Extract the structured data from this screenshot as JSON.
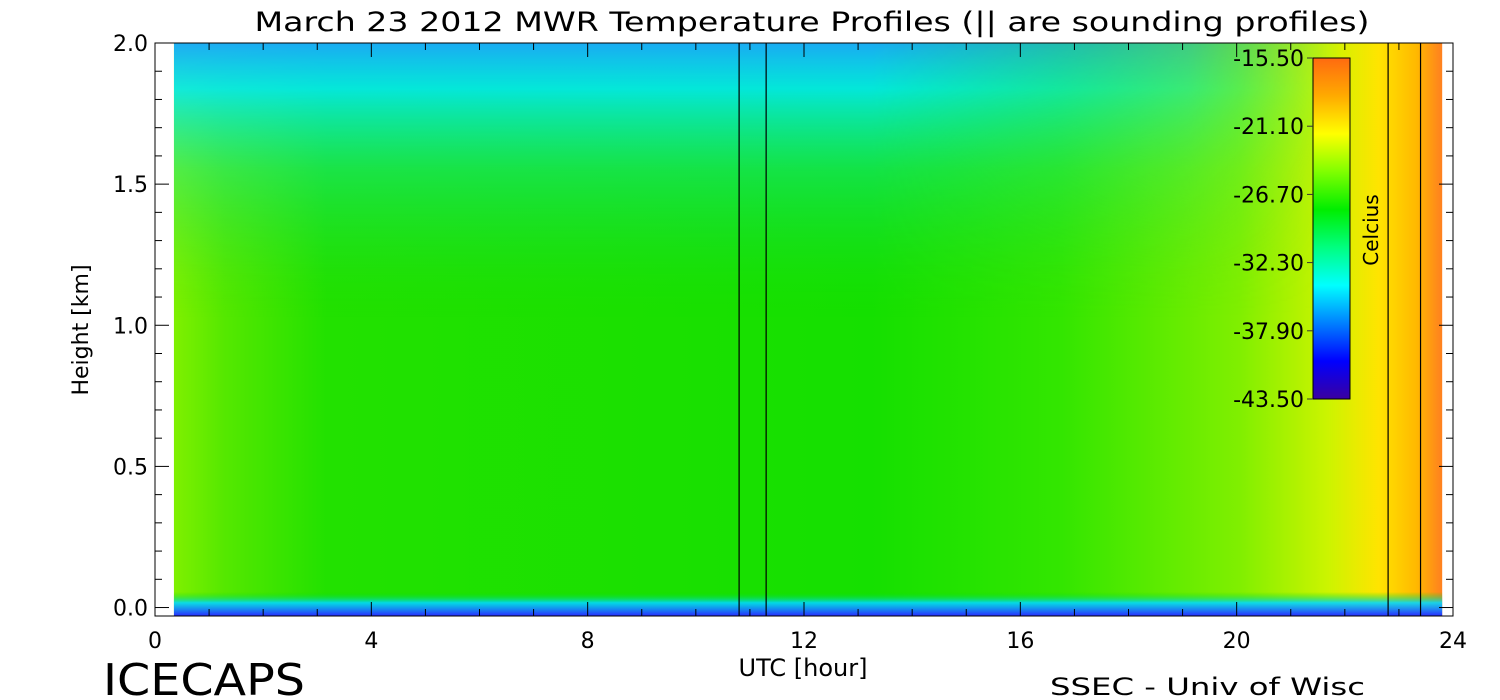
{
  "footer": {
    "left_label": "ICECAPS",
    "right_label": "SSEC - Univ of Wisc"
  },
  "chart_data": {
    "type": "heatmap",
    "title": "March 23 2012 MWR Temperature Profiles (|| are sounding profiles)",
    "xlabel": "UTC [hour]",
    "ylabel": "Height [km]",
    "xlim": [
      0,
      24
    ],
    "ylim": [
      -0.03,
      2.0
    ],
    "x_ticks": [
      "0",
      "4",
      "8",
      "12",
      "16",
      "20",
      "24"
    ],
    "y_ticks": [
      "0.0",
      "0.5",
      "1.0",
      "1.5",
      "2.0"
    ],
    "data_x_range": [
      0.35,
      23.8
    ],
    "sounding_profiles_utc": [
      10.8,
      11.3,
      22.8,
      23.4
    ],
    "colorbar": {
      "label": "Celcius",
      "tick_labels": [
        "-15.50",
        "-21.10",
        "-26.70",
        "-32.30",
        "-37.90",
        "-43.50"
      ],
      "range": [
        -43.5,
        -15.5
      ],
      "colors": [
        "#3a00a0",
        "#0000ff",
        "#0080ff",
        "#00ffff",
        "#00ff80",
        "#00ee00",
        "#80ff00",
        "#ffff00",
        "#ffaa00",
        "#ff6a10"
      ]
    },
    "grid": false,
    "legend_position": "top-right"
  }
}
